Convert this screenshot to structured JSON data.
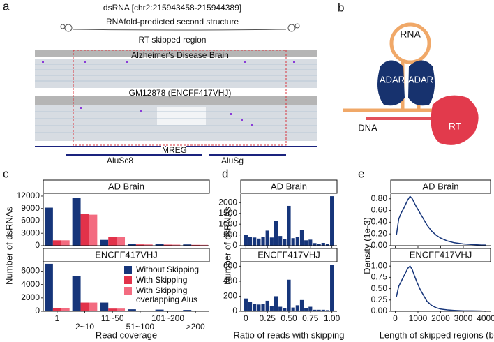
{
  "panel_labels": [
    "a",
    "b",
    "c",
    "d",
    "e"
  ],
  "panel_a": {
    "title": "dsRNA [chr2:215943458-215944389]",
    "structure_label": "RNAfold-predicted second structure",
    "region_label": "RT skipped region",
    "track_1": "Alzheimer's Disease Brain",
    "track_2": "GM12878 (ENCFF417VHJ)",
    "gene": "MREG",
    "alu_1": "AluSc8",
    "alu_2": "AluSg"
  },
  "panel_b": {
    "rna": "RNA",
    "adar_1": "ADAR",
    "adar_2": "ADAR",
    "dna": "DNA",
    "rt": "RT"
  },
  "chart_data": [
    {
      "type": "bar",
      "categories": [
        "1",
        "2~10",
        "11~50",
        "51~100",
        "101~200",
        ">200"
      ],
      "xlabel": "Read coverage",
      "ylabel": "Number of dsRNAs",
      "legend": "top-right",
      "series": [
        {
          "name": "Without Skipping",
          "color": "#16357a"
        },
        {
          "name": "With Skipping",
          "color": "#e2324a"
        },
        {
          "name": "With Skipping overlapping Alus",
          "color": "#f36b80"
        }
      ],
      "facets": [
        {
          "title": "AD Brain",
          "ylim": [
            0,
            12500
          ],
          "yticks": [
            0,
            3000,
            6000,
            9000,
            12000
          ],
          "values": [
            [
              9200,
              11500,
              1400,
              400,
              350,
              300
            ],
            [
              1300,
              7600,
              2100,
              300,
              250,
              200
            ],
            [
              1300,
              7500,
              2100,
              300,
              250,
              200
            ]
          ]
        },
        {
          "title": "ENCFF417VHJ",
          "ylim": [
            0,
            7300
          ],
          "yticks": [
            0,
            2000,
            4000,
            6000
          ],
          "values": [
            [
              7100,
              5300,
              1300,
              300,
              250,
              200
            ],
            [
              500,
              1300,
              400,
              100,
              80,
              60
            ],
            [
              500,
              1300,
              400,
              100,
              80,
              60
            ]
          ]
        }
      ]
    },
    {
      "type": "histogram",
      "xlabel": "Ratio of reads with skipping",
      "ylabel": "Number of dsRNAs",
      "color": "#16357a",
      "bins": [
        -0.025,
        0.025,
        0.075,
        0.125,
        0.175,
        0.225,
        0.275,
        0.325,
        0.375,
        0.425,
        0.475,
        0.525,
        0.575,
        0.625,
        0.675,
        0.725,
        0.775,
        0.825,
        0.875,
        0.925,
        0.975,
        1.025
      ],
      "xlim": [
        -0.06,
        1.06
      ],
      "xticks": [
        0,
        0.25,
        {
          "value": 0.5,
          "label": "0.50"
        },
        0.75,
        {
          "value": 1,
          "label": "1.00"
        }
      ],
      "facets": [
        {
          "title": "AD Brain",
          "ylim": [
            0,
            2400
          ],
          "yticks": [
            0,
            500,
            1000,
            1500,
            2000
          ],
          "counts": [
            500,
            420,
            380,
            330,
            420,
            700,
            380,
            1150,
            450,
            300,
            1850,
            350,
            400,
            730,
            250,
            280,
            120,
            70,
            130,
            80,
            2300
          ]
        },
        {
          "title": "ENCFF417VHJ",
          "ylim": [
            0,
            650
          ],
          "yticks": [
            0,
            200,
            400,
            600
          ],
          "counts": [
            170,
            130,
            100,
            90,
            100,
            140,
            70,
            200,
            60,
            40,
            420,
            50,
            80,
            150,
            40,
            60,
            20,
            20,
            20,
            15,
            620
          ]
        }
      ]
    },
    {
      "type": "line",
      "xlabel": "Length of skipped regions (bp)",
      "ylabel": "Density (1e-3)",
      "color": "#16357a",
      "xlim": [
        -200,
        4200
      ],
      "xticks": [
        0,
        1000,
        2000,
        3000,
        4000
      ],
      "x": [
        50,
        150,
        250,
        350,
        450,
        550,
        650,
        750,
        850,
        950,
        1100,
        1250,
        1400,
        1600,
        1800,
        2000,
        2300,
        2600,
        3000,
        3400,
        3800,
        4000
      ],
      "facets": [
        {
          "title": "AD Brain",
          "ylim": [
            0,
            0.88
          ],
          "yticks": [
            {
              "value": 0,
              "label": "0.00"
            },
            {
              "value": 0.2,
              "label": "0.20"
            },
            {
              "value": 0.4,
              "label": "0.40"
            },
            {
              "value": 0.6,
              "label": "0.60"
            },
            {
              "value": 0.8,
              "label": "0.80"
            }
          ],
          "values": [
            0.18,
            0.45,
            0.55,
            0.62,
            0.7,
            0.78,
            0.84,
            0.8,
            0.72,
            0.65,
            0.55,
            0.45,
            0.35,
            0.25,
            0.18,
            0.13,
            0.08,
            0.05,
            0.03,
            0.02,
            0.01,
            0.01
          ]
        },
        {
          "title": "ENCFF417VHJ",
          "ylim": [
            0,
            1.08
          ],
          "yticks": [
            {
              "value": 0,
              "label": "0.00"
            },
            {
              "value": 0.25,
              "label": "0.25"
            },
            {
              "value": 0.5,
              "label": "0.50"
            },
            {
              "value": 0.75,
              "label": "0.75"
            },
            {
              "value": 1,
              "label": "1.00"
            }
          ],
          "values": [
            0.32,
            0.55,
            0.65,
            0.75,
            0.85,
            0.95,
            1.0,
            0.92,
            0.78,
            0.65,
            0.48,
            0.35,
            0.22,
            0.13,
            0.08,
            0.05,
            0.03,
            0.02,
            0.01,
            0.01,
            0.005,
            0
          ]
        }
      ]
    }
  ]
}
